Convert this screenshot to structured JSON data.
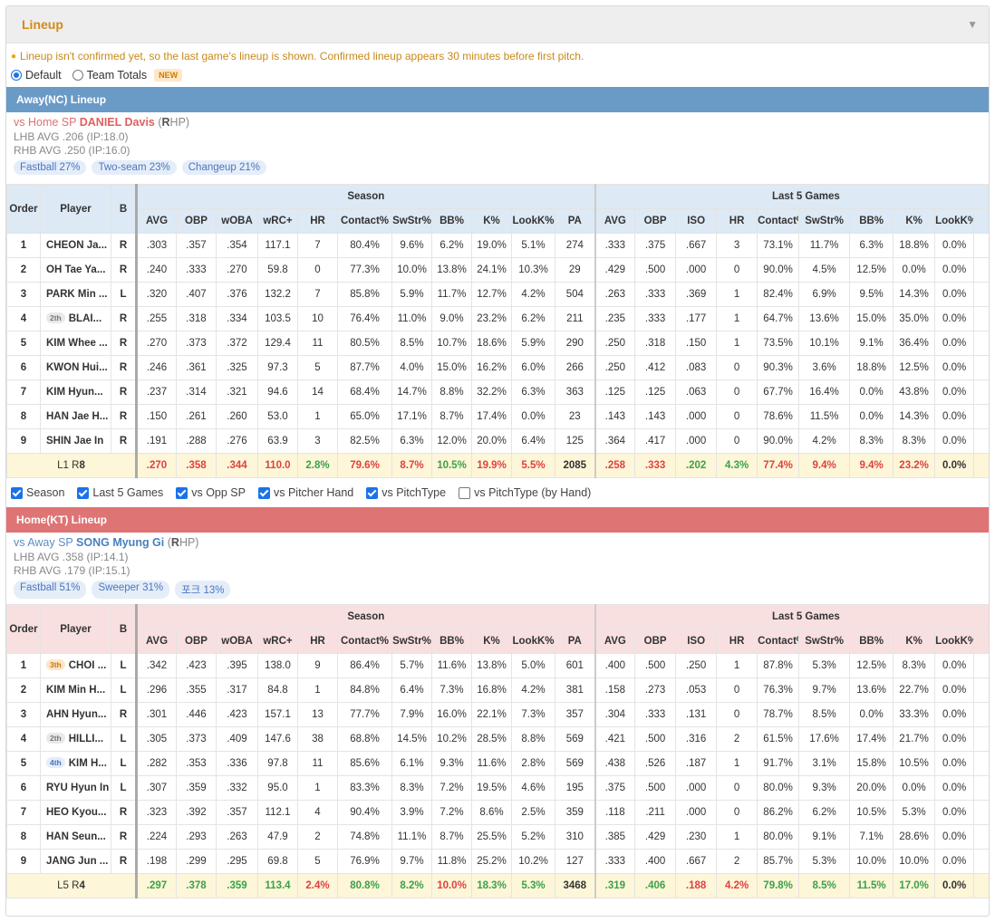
{
  "panel": {
    "title": "Lineup",
    "collapse_icon": "triangle-down-icon"
  },
  "notice": "Lineup isn't confirmed yet, so the last game's lineup is shown. Confirmed lineup appears 30 minutes before first pitch.",
  "view_options": [
    {
      "label": "Default",
      "selected": true
    },
    {
      "label": "Team Totals",
      "selected": false,
      "badge": "NEW"
    }
  ],
  "away": {
    "bar_title": "Away(NC) Lineup",
    "sp_prefix": "vs Home SP",
    "sp_name": "DANIEL Davis",
    "sp_hand_open": " (",
    "sp_hand_letter": "R",
    "sp_hand_rest": "HP)",
    "lhb": "LHB AVG .206 (IP:18.0)",
    "rhb": "RHB AVG .250 (IP:16.0)",
    "pitches": [
      "Fastball 27%",
      "Two-seam 23%",
      "Changeup 21%"
    ],
    "rows": [
      {
        "order": "1",
        "tag": "",
        "player": "CHEON Ja...",
        "bat": "R",
        "s": [
          ".303",
          ".357",
          ".354",
          "117.1",
          "7",
          "80.4%",
          "9.6%",
          "6.2%",
          "19.0%",
          "5.1%",
          "274"
        ],
        "l5": [
          ".333",
          ".375",
          ".667",
          "3",
          "73.1%",
          "11.7%",
          "6.3%",
          "18.8%",
          "0.0%"
        ]
      },
      {
        "order": "2",
        "tag": "",
        "player": "OH Tae Ya...",
        "bat": "R",
        "s": [
          ".240",
          ".333",
          ".270",
          "59.8",
          "0",
          "77.3%",
          "10.0%",
          "13.8%",
          "24.1%",
          "10.3%",
          "29"
        ],
        "l5": [
          ".429",
          ".500",
          ".000",
          "0",
          "90.0%",
          "4.5%",
          "12.5%",
          "0.0%",
          "0.0%"
        ]
      },
      {
        "order": "3",
        "tag": "",
        "player": "PARK Min ...",
        "bat": "L",
        "s": [
          ".320",
          ".407",
          ".376",
          "132.2",
          "7",
          "85.8%",
          "5.9%",
          "11.7%",
          "12.7%",
          "4.2%",
          "504"
        ],
        "l5": [
          ".263",
          ".333",
          ".369",
          "1",
          "82.4%",
          "6.9%",
          "9.5%",
          "14.3%",
          "0.0%"
        ]
      },
      {
        "order": "4",
        "tag": "2th",
        "player": "BLAI...",
        "bat": "R",
        "s": [
          ".255",
          ".318",
          ".334",
          "103.5",
          "10",
          "76.4%",
          "11.0%",
          "9.0%",
          "23.2%",
          "6.2%",
          "211"
        ],
        "l5": [
          ".235",
          ".333",
          ".177",
          "1",
          "64.7%",
          "13.6%",
          "15.0%",
          "35.0%",
          "0.0%"
        ]
      },
      {
        "order": "5",
        "tag": "",
        "player": "KIM Whee ...",
        "bat": "R",
        "s": [
          ".270",
          ".373",
          ".372",
          "129.4",
          "11",
          "80.5%",
          "8.5%",
          "10.7%",
          "18.6%",
          "5.9%",
          "290"
        ],
        "l5": [
          ".250",
          ".318",
          ".150",
          "1",
          "73.5%",
          "10.1%",
          "9.1%",
          "36.4%",
          "0.0%"
        ]
      },
      {
        "order": "6",
        "tag": "",
        "player": "KWON Hui...",
        "bat": "R",
        "s": [
          ".246",
          ".361",
          ".325",
          "97.3",
          "5",
          "87.7%",
          "4.0%",
          "15.0%",
          "16.2%",
          "6.0%",
          "266"
        ],
        "l5": [
          ".250",
          ".412",
          ".083",
          "0",
          "90.3%",
          "3.6%",
          "18.8%",
          "12.5%",
          "0.0%"
        ]
      },
      {
        "order": "7",
        "tag": "",
        "player": "KIM Hyun...",
        "bat": "R",
        "s": [
          ".237",
          ".314",
          ".321",
          "94.6",
          "14",
          "68.4%",
          "14.7%",
          "8.8%",
          "32.2%",
          "6.3%",
          "363"
        ],
        "l5": [
          ".125",
          ".125",
          ".063",
          "0",
          "67.7%",
          "16.4%",
          "0.0%",
          "43.8%",
          "0.0%"
        ]
      },
      {
        "order": "8",
        "tag": "",
        "player": "HAN Jae H...",
        "bat": "R",
        "s": [
          ".150",
          ".261",
          ".260",
          "53.0",
          "1",
          "65.0%",
          "17.1%",
          "8.7%",
          "17.4%",
          "0.0%",
          "23"
        ],
        "l5": [
          ".143",
          ".143",
          ".000",
          "0",
          "78.6%",
          "11.5%",
          "0.0%",
          "14.3%",
          "0.0%"
        ]
      },
      {
        "order": "9",
        "tag": "",
        "player": "SHIN Jae In",
        "bat": "R",
        "s": [
          ".191",
          ".288",
          ".276",
          "63.9",
          "3",
          "82.5%",
          "6.3%",
          "12.0%",
          "20.0%",
          "6.4%",
          "125"
        ],
        "l5": [
          ".364",
          ".417",
          ".000",
          "0",
          "90.0%",
          "4.2%",
          "8.3%",
          "8.3%",
          "0.0%"
        ]
      }
    ],
    "totals": {
      "label_l": "L1 R",
      "label_r": "8",
      "s": [
        ".270",
        ".358",
        ".344",
        "110.0",
        "2.8%",
        "79.6%",
        "8.7%",
        "10.5%",
        "19.9%",
        "5.5%",
        "2085"
      ],
      "s_colors": [
        "red",
        "red",
        "red",
        "red",
        "green",
        "red",
        "red",
        "green",
        "red",
        "red",
        ""
      ],
      "l5": [
        ".258",
        ".333",
        ".202",
        "4.3%",
        "77.4%",
        "9.4%",
        "9.4%",
        "23.2%",
        "0.0%"
      ],
      "l5_colors": [
        "red",
        "red",
        "green",
        "green",
        "red",
        "red",
        "red",
        "red",
        ""
      ]
    }
  },
  "filters": [
    {
      "label": "Season",
      "checked": true
    },
    {
      "label": "Last 5 Games",
      "checked": true
    },
    {
      "label": "vs Opp SP",
      "checked": true
    },
    {
      "label": "vs Pitcher Hand",
      "checked": true
    },
    {
      "label": "vs PitchType",
      "checked": true
    },
    {
      "label": "vs PitchType (by Hand)",
      "checked": false
    }
  ],
  "home": {
    "bar_title": "Home(KT) Lineup",
    "sp_prefix": "vs Away SP",
    "sp_name": "SONG Myung Gi",
    "sp_hand_open": " (",
    "sp_hand_letter": "R",
    "sp_hand_rest": "HP)",
    "lhb": "LHB AVG .358 (IP:14.1)",
    "rhb": "RHB AVG .179 (IP:15.1)",
    "pitches": [
      "Fastball 51%",
      "Sweeper 31%",
      "포크 13%"
    ],
    "rows": [
      {
        "order": "1",
        "tag": "3th",
        "player": "CHOI ...",
        "bat": "L",
        "s": [
          ".342",
          ".423",
          ".395",
          "138.0",
          "9",
          "86.4%",
          "5.7%",
          "11.6%",
          "13.8%",
          "5.0%",
          "601"
        ],
        "l5": [
          ".400",
          ".500",
          ".250",
          "1",
          "87.8%",
          "5.3%",
          "12.5%",
          "8.3%",
          "0.0%"
        ]
      },
      {
        "order": "2",
        "tag": "",
        "player": "KIM Min H...",
        "bat": "L",
        "s": [
          ".296",
          ".355",
          ".317",
          "84.8",
          "1",
          "84.8%",
          "6.4%",
          "7.3%",
          "16.8%",
          "4.2%",
          "381"
        ],
        "l5": [
          ".158",
          ".273",
          ".053",
          "0",
          "76.3%",
          "9.7%",
          "13.6%",
          "22.7%",
          "0.0%"
        ]
      },
      {
        "order": "3",
        "tag": "",
        "player": "AHN Hyun...",
        "bat": "R",
        "s": [
          ".301",
          ".446",
          ".423",
          "157.1",
          "13",
          "77.7%",
          "7.9%",
          "16.0%",
          "22.1%",
          "7.3%",
          "357"
        ],
        "l5": [
          ".304",
          ".333",
          ".131",
          "0",
          "78.7%",
          "8.5%",
          "0.0%",
          "33.3%",
          "0.0%"
        ]
      },
      {
        "order": "4",
        "tag": "2th",
        "player": "HILLI...",
        "bat": "L",
        "s": [
          ".305",
          ".373",
          ".409",
          "147.6",
          "38",
          "68.8%",
          "14.5%",
          "10.2%",
          "28.5%",
          "8.8%",
          "569"
        ],
        "l5": [
          ".421",
          ".500",
          ".316",
          "2",
          "61.5%",
          "17.6%",
          "17.4%",
          "21.7%",
          "0.0%"
        ]
      },
      {
        "order": "5",
        "tag": "4th",
        "player": "KIM H...",
        "bat": "L",
        "s": [
          ".282",
          ".353",
          ".336",
          "97.8",
          "11",
          "85.6%",
          "6.1%",
          "9.3%",
          "11.6%",
          "2.8%",
          "569"
        ],
        "l5": [
          ".438",
          ".526",
          ".187",
          "1",
          "91.7%",
          "3.1%",
          "15.8%",
          "10.5%",
          "0.0%"
        ]
      },
      {
        "order": "6",
        "tag": "",
        "player": "RYU Hyun In",
        "bat": "L",
        "s": [
          ".307",
          ".359",
          ".332",
          "95.0",
          "1",
          "83.3%",
          "8.3%",
          "7.2%",
          "19.5%",
          "4.6%",
          "195"
        ],
        "l5": [
          ".375",
          ".500",
          ".000",
          "0",
          "80.0%",
          "9.3%",
          "20.0%",
          "0.0%",
          "0.0%"
        ]
      },
      {
        "order": "7",
        "tag": "",
        "player": "HEO Kyou...",
        "bat": "R",
        "s": [
          ".323",
          ".392",
          ".357",
          "112.1",
          "4",
          "90.4%",
          "3.9%",
          "7.2%",
          "8.6%",
          "2.5%",
          "359"
        ],
        "l5": [
          ".118",
          ".211",
          ".000",
          "0",
          "86.2%",
          "6.2%",
          "10.5%",
          "5.3%",
          "0.0%"
        ]
      },
      {
        "order": "8",
        "tag": "",
        "player": "HAN Seun...",
        "bat": "R",
        "s": [
          ".224",
          ".293",
          ".263",
          "47.9",
          "2",
          "74.8%",
          "11.1%",
          "8.7%",
          "25.5%",
          "5.2%",
          "310"
        ],
        "l5": [
          ".385",
          ".429",
          ".230",
          "1",
          "80.0%",
          "9.1%",
          "7.1%",
          "28.6%",
          "0.0%"
        ]
      },
      {
        "order": "9",
        "tag": "",
        "player": "JANG Jun ...",
        "bat": "R",
        "s": [
          ".198",
          ".299",
          ".295",
          "69.8",
          "5",
          "76.9%",
          "9.7%",
          "11.8%",
          "25.2%",
          "10.2%",
          "127"
        ],
        "l5": [
          ".333",
          ".400",
          ".667",
          "2",
          "85.7%",
          "5.3%",
          "10.0%",
          "10.0%",
          "0.0%"
        ]
      }
    ],
    "totals": {
      "label_l": "L5 R",
      "label_r": "4",
      "s": [
        ".297",
        ".378",
        ".359",
        "113.4",
        "2.4%",
        "80.8%",
        "8.2%",
        "10.0%",
        "18.3%",
        "5.3%",
        "3468"
      ],
      "s_colors": [
        "green",
        "green",
        "green",
        "green",
        "red",
        "green",
        "green",
        "red",
        "green",
        "green",
        ""
      ],
      "l5": [
        ".319",
        ".406",
        ".188",
        "4.2%",
        "79.8%",
        "8.5%",
        "11.5%",
        "17.0%",
        "0.0%"
      ],
      "l5_colors": [
        "green",
        "green",
        "red",
        "red",
        "green",
        "green",
        "green",
        "green",
        ""
      ]
    }
  },
  "headers": {
    "order": "Order",
    "player": "Player",
    "bat": "B",
    "season": "Season",
    "last5": "Last 5 Games",
    "season_cols": [
      "AVG",
      "OBP",
      "wOBA",
      "wRC+",
      "HR",
      "Contact%",
      "SwStr%",
      "BB%",
      "K%",
      "LookK%",
      "PA"
    ],
    "last5_cols": [
      "AVG",
      "OBP",
      "ISO",
      "HR",
      "Contact%",
      "SwStr%",
      "BB%",
      "K%",
      "LookK%"
    ]
  },
  "colors": {
    "title": "#d38a1a",
    "away_bar": "#6a9bc7",
    "home_bar": "#de7474",
    "accent": "#1a73e8",
    "good": "#3aa14a",
    "bad": "#e04040"
  }
}
